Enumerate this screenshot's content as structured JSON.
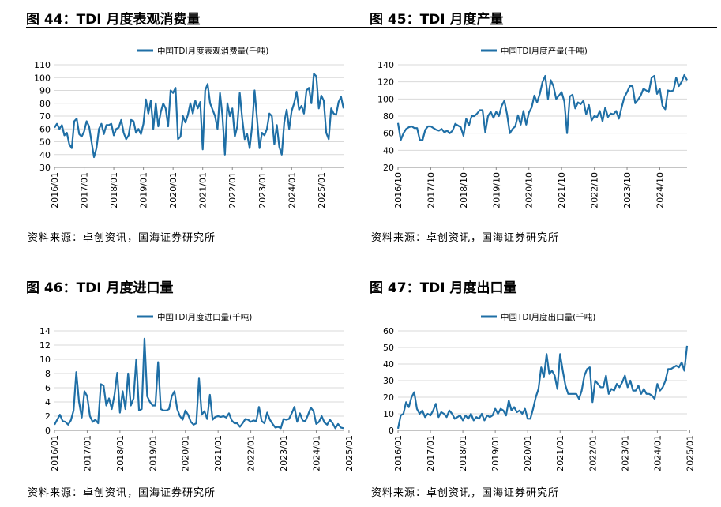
{
  "colors": {
    "series": "#1f6fa6",
    "grid": "#d9d9d9",
    "axis": "#888888",
    "text": "#000000"
  },
  "panels": [
    {
      "title": "图 44：TDI 月度表观消费量",
      "source": "资料来源：卓创资讯，国海证券研究所",
      "chart_data": {
        "type": "line",
        "legend": "中国TDI月度表观消费量(千吨)",
        "legend_position": "top-center",
        "grid": true,
        "ylim": [
          30,
          110
        ],
        "yticks": [
          30,
          40,
          50,
          60,
          70,
          80,
          90,
          100,
          110
        ],
        "xticks": [
          "2016/01",
          "2017/01",
          "2018/01",
          "2019/01",
          "2020/01",
          "2021/01",
          "2022/01",
          "2023/01",
          "2024/01",
          "2025/01"
        ],
        "x_start": "2016/01",
        "values": [
          61,
          64,
          60,
          63,
          55,
          57,
          48,
          45,
          66,
          68,
          56,
          54,
          58,
          66,
          62,
          50,
          38,
          45,
          60,
          64,
          56,
          63,
          63,
          64,
          55,
          60,
          61,
          67,
          57,
          52,
          55,
          67,
          66,
          57,
          60,
          56,
          64,
          83,
          72,
          82,
          60,
          80,
          62,
          73,
          80,
          76,
          62,
          90,
          88,
          92,
          52,
          54,
          70,
          65,
          71,
          80,
          72,
          82,
          76,
          81,
          44,
          90,
          95,
          80,
          75,
          70,
          60,
          88,
          70,
          40,
          80,
          70,
          76,
          54,
          62,
          88,
          68,
          52,
          56,
          45,
          62,
          90,
          68,
          45,
          57,
          55,
          60,
          72,
          70,
          48,
          63,
          46,
          40,
          65,
          75,
          60,
          74,
          80,
          89,
          75,
          78,
          72,
          90,
          92,
          80,
          103,
          101,
          76,
          86,
          82,
          57,
          52,
          76,
          72,
          71,
          81,
          85,
          76
        ]
      }
    },
    {
      "title": "图 45：TDI 月度产量",
      "source": "资料来源：卓创资讯，国海证券研究所",
      "chart_data": {
        "type": "line",
        "legend": "中国TDI月度产量(千吨)",
        "legend_position": "top-center",
        "grid": true,
        "ylim": [
          20,
          140
        ],
        "yticks": [
          20,
          40,
          60,
          80,
          100,
          120,
          140
        ],
        "xticks": [
          "2016/10",
          "2017/10",
          "2018/10",
          "2019/10",
          "2020/10",
          "2021/10",
          "2022/10",
          "2023/10",
          "2024/10"
        ],
        "x_start": "2016/10",
        "values": [
          72,
          52,
          60,
          65,
          67,
          68,
          66,
          66,
          52,
          52,
          64,
          68,
          68,
          66,
          64,
          63,
          65,
          61,
          63,
          60,
          63,
          71,
          69,
          67,
          57,
          77,
          69,
          80,
          80,
          83,
          87,
          87,
          61,
          80,
          85,
          78,
          85,
          80,
          92,
          98,
          82,
          60,
          65,
          68,
          81,
          70,
          86,
          70,
          84,
          90,
          104,
          96,
          106,
          120,
          127,
          100,
          122,
          115,
          100,
          104,
          108,
          97,
          60,
          103,
          105,
          89,
          96,
          94,
          98,
          82,
          93,
          75,
          80,
          79,
          86,
          74,
          90,
          79,
          83,
          82,
          86,
          77,
          90,
          102,
          108,
          115,
          115,
          95,
          99,
          104,
          112,
          110,
          108,
          125,
          127,
          106,
          112,
          92,
          88,
          110,
          109,
          110,
          125,
          115,
          120,
          128,
          122
        ]
      }
    },
    {
      "title": "图 46：TDI 月度进口量",
      "source": "资料来源：卓创资讯，国海证券研究所",
      "chart_data": {
        "type": "line",
        "legend": "中国TDI月度进口量(千吨)",
        "legend_position": "top-center",
        "grid": true,
        "ylim": [
          0,
          14
        ],
        "yticks": [
          0,
          2,
          4,
          6,
          8,
          10,
          12,
          14
        ],
        "xticks": [
          "2016/01",
          "2017/01",
          "2018/01",
          "2019/01",
          "2020/01",
          "2021/01",
          "2022/01",
          "2023/01",
          "2024/01",
          "2025/01"
        ],
        "x_start": "2016/01",
        "values": [
          0.8,
          1.5,
          2.2,
          1.3,
          1.2,
          0.8,
          1.4,
          2.8,
          8.2,
          4.0,
          1.8,
          5.5,
          4.8,
          2.0,
          1.2,
          1.5,
          1.0,
          6.5,
          6.3,
          3.5,
          4.5,
          3.0,
          5.0,
          8.1,
          2.5,
          5.5,
          3.0,
          8.0,
          3.5,
          4.5,
          10.0,
          2.8,
          3.0,
          12.9,
          4.8,
          4.0,
          3.5,
          3.5,
          9.6,
          3.0,
          2.8,
          2.8,
          3.0,
          4.8,
          5.5,
          3.0,
          2.0,
          1.5,
          2.8,
          2.2,
          1.2,
          0.8,
          1.0,
          7.3,
          2.2,
          2.7,
          1.6,
          5.0,
          1.5,
          1.9,
          2.0,
          1.9,
          2.0,
          1.8,
          2.4,
          1.4,
          1.0,
          1.0,
          0.5,
          1.0,
          1.6,
          1.5,
          1.2,
          1.4,
          1.3,
          3.3,
          1.3,
          1.0,
          2.5,
          1.5,
          0.9,
          0.4,
          0.5,
          0.3,
          1.6,
          1.5,
          1.6,
          2.4,
          3.3,
          1.2,
          2.4,
          1.4,
          1.3,
          2.2,
          3.2,
          2.7,
          0.9,
          1.2,
          2.0,
          1.1,
          0.8,
          1.5,
          1.0,
          0.3,
          0.9,
          0.4,
          0.3
        ]
      }
    },
    {
      "title": "图 47：TDI 月度出口量",
      "source": "资料来源：卓创资讯，国海证券研究所",
      "chart_data": {
        "type": "line",
        "legend": "中国TDI月度出口量(千吨)",
        "legend_position": "top-center",
        "grid": true,
        "ylim": [
          0,
          60
        ],
        "yticks": [
          0,
          10,
          20,
          30,
          40,
          50,
          60
        ],
        "xticks": [
          "2016/01",
          "2017/01",
          "2018/01",
          "2019/01",
          "2020/01",
          "2021/01",
          "2022/01",
          "2023/01",
          "2024/01",
          "2025/01"
        ],
        "x_start": "2016/01",
        "values": [
          1,
          9,
          10,
          17,
          14,
          20,
          23,
          13,
          10,
          12,
          8,
          10,
          9,
          12,
          16,
          8,
          11,
          10,
          8,
          12,
          10,
          7,
          8,
          9,
          6,
          9,
          7,
          10,
          6,
          8,
          7,
          10,
          6,
          9,
          8,
          9,
          13,
          10,
          13,
          12,
          9,
          18,
          12,
          14,
          11,
          12,
          10,
          13,
          7,
          7,
          13,
          20,
          25,
          38,
          32,
          46,
          34,
          36,
          33,
          25,
          46,
          36,
          27,
          22,
          22,
          22,
          22,
          19,
          24,
          33,
          37,
          38,
          17,
          30,
          28,
          26,
          26,
          33,
          22,
          25,
          24,
          28,
          26,
          29,
          33,
          26,
          30,
          24,
          24,
          27,
          22,
          25,
          22,
          22,
          21,
          19,
          28,
          24,
          26,
          30,
          37,
          37,
          38,
          39,
          38,
          41,
          36,
          51
        ]
      }
    }
  ]
}
